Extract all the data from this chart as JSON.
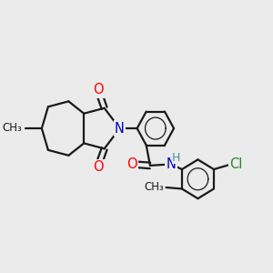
{
  "background_color": "#ebebeb",
  "atom_colors": {
    "O": "#ff0000",
    "N": "#0000cc",
    "Cl": "#228b22",
    "H": "#4a8fa8",
    "C": "#1a1a1a"
  },
  "bond_color": "#1a1a1a",
  "bond_width": 1.6,
  "font_size_atoms": 10.5
}
